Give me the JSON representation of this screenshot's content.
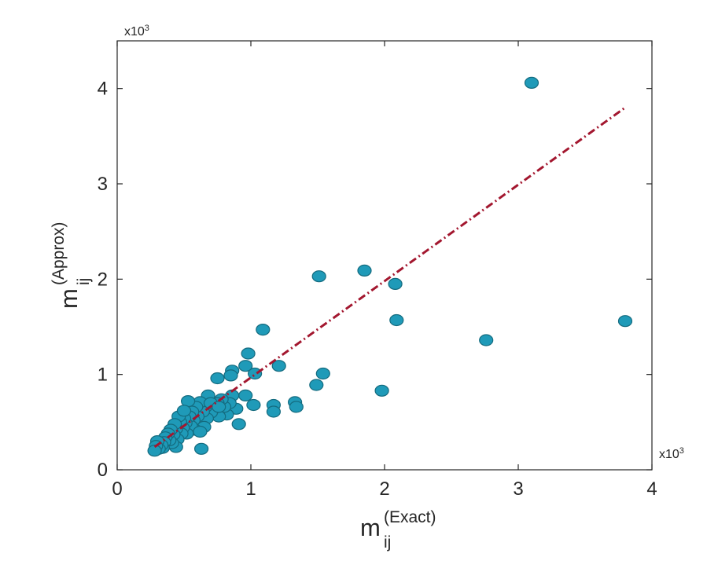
{
  "chart_data": {
    "type": "scatter",
    "title": "",
    "xlabel": {
      "base": "m",
      "sub": "ij",
      "sup": "(Exact)"
    },
    "ylabel": {
      "base": "m",
      "sub": "ij",
      "sup": "(Approx)"
    },
    "xlim": [
      0,
      4000
    ],
    "ylim": [
      0,
      4500
    ],
    "x_ticks": [
      0,
      1000,
      2000,
      3000,
      4000
    ],
    "y_ticks": [
      0,
      1000,
      2000,
      3000,
      4000
    ],
    "x_tick_labels": [
      "0",
      "1",
      "2",
      "3",
      "4"
    ],
    "y_tick_labels": [
      "0",
      "1",
      "2",
      "3",
      "4"
    ],
    "x_multiplier": {
      "base": "x10",
      "exp": "3"
    },
    "y_multiplier": {
      "base": "x10",
      "exp": "3"
    },
    "grid": false,
    "box": true,
    "marker_color": "#1f9ab8",
    "marker_edge_color": "#146b7f",
    "line_color": "#a3172f",
    "series": [
      {
        "kind": "scatter",
        "points": [
          [
            3100,
            4060
          ],
          [
            3800,
            1560
          ],
          [
            2760,
            1360
          ],
          [
            2090,
            1570
          ],
          [
            2080,
            1950
          ],
          [
            1850,
            2090
          ],
          [
            1510,
            2030
          ],
          [
            1980,
            830
          ],
          [
            1540,
            1010
          ],
          [
            1490,
            890
          ],
          [
            1210,
            1090
          ],
          [
            1090,
            1470
          ],
          [
            980,
            1220
          ],
          [
            1030,
            1010
          ],
          [
            960,
            1090
          ],
          [
            860,
            1040
          ],
          [
            850,
            990
          ],
          [
            750,
            960
          ],
          [
            1330,
            710
          ],
          [
            1340,
            660
          ],
          [
            1170,
            680
          ],
          [
            1170,
            610
          ],
          [
            1020,
            680
          ],
          [
            960,
            780
          ],
          [
            910,
            480
          ],
          [
            890,
            640
          ],
          [
            860,
            780
          ],
          [
            840,
            700
          ],
          [
            820,
            580
          ],
          [
            800,
            660
          ],
          [
            780,
            740
          ],
          [
            760,
            560
          ],
          [
            750,
            700
          ],
          [
            720,
            640
          ],
          [
            700,
            600
          ],
          [
            680,
            780
          ],
          [
            670,
            540
          ],
          [
            660,
            660
          ],
          [
            650,
            450
          ],
          [
            640,
            610
          ],
          [
            630,
            220
          ],
          [
            620,
            710
          ],
          [
            600,
            560
          ],
          [
            590,
            660
          ],
          [
            580,
            420
          ],
          [
            570,
            520
          ],
          [
            560,
            610
          ],
          [
            550,
            460
          ],
          [
            540,
            560
          ],
          [
            530,
            720
          ],
          [
            520,
            380
          ],
          [
            510,
            490
          ],
          [
            500,
            540
          ],
          [
            490,
            440
          ],
          [
            480,
            380
          ],
          [
            470,
            500
          ],
          [
            460,
            560
          ],
          [
            450,
            320
          ],
          [
            440,
            240
          ],
          [
            440,
            430
          ],
          [
            430,
            480
          ],
          [
            420,
            370
          ],
          [
            410,
            280
          ],
          [
            400,
            420
          ],
          [
            390,
            310
          ],
          [
            380,
            380
          ],
          [
            360,
            340
          ],
          [
            350,
            290
          ],
          [
            340,
            230
          ],
          [
            330,
            260
          ],
          [
            310,
            220
          ],
          [
            300,
            300
          ],
          [
            290,
            250
          ],
          [
            280,
            200
          ],
          [
            500,
            620
          ],
          [
            620,
            400
          ],
          [
            700,
            700
          ],
          [
            760,
            660
          ]
        ]
      },
      {
        "kind": "line",
        "style": "dash-dot",
        "points": [
          [
            280,
            240
          ],
          [
            3800,
            3800
          ]
        ]
      }
    ]
  }
}
